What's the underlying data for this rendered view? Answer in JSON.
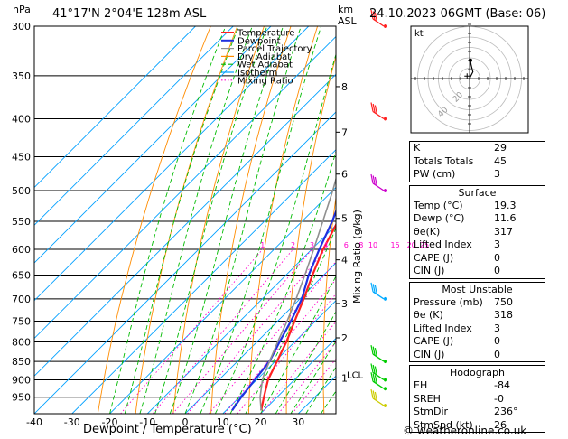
{
  "header": {
    "location": "41°17'N  2°04'E  128m  ASL",
    "datetime": "24.10.2023  06GMT  (Base: 06)",
    "pressure_unit": "hPa",
    "height_unit_top": "km",
    "height_unit_bottom": "ASL"
  },
  "legend": [
    "Temperature",
    "Dewpoint",
    "Parcel Trajectory",
    "Dry Adiabat",
    "Wet Adiabat",
    "Isotherm",
    "Mixing Ratio"
  ],
  "colors": {
    "temperature": "#ff2020",
    "dewpoint": "#2030e0",
    "parcel": "#909090",
    "dry_adiabat": "#ff8c00",
    "wet_adiabat": "#00bb00",
    "isotherm": "#00a0ff",
    "mixing_ratio": "#ff00cc",
    "wind": "#00cc00"
  },
  "chart_data": {
    "type": "line",
    "title": "",
    "xlabel": "Dewpoint / Temperature (°C)",
    "ylabel": "hPa",
    "y_scale": "log",
    "pressure_ticks": [
      300,
      350,
      400,
      450,
      500,
      550,
      600,
      650,
      700,
      750,
      800,
      850,
      900,
      950
    ],
    "temperature_ticks": [
      -40,
      -30,
      -20,
      -10,
      0,
      10,
      20,
      30
    ],
    "xlim": [
      -40,
      40
    ],
    "ylim": [
      1000,
      300
    ],
    "km_ticks": [
      {
        "label": "8",
        "p": 362
      },
      {
        "label": "7",
        "p": 417
      },
      {
        "label": "6",
        "p": 475
      },
      {
        "label": "5",
        "p": 545
      },
      {
        "label": "4",
        "p": 620
      },
      {
        "label": "3",
        "p": 710
      },
      {
        "label": "2",
        "p": 790
      },
      {
        "label": "1",
        "p": 895
      }
    ],
    "lcl": {
      "label": "LCL",
      "p": 885
    },
    "mixing_ratio_axis_label": "Mixing Ratio (g/kg)",
    "mixing_ratio_labels": [
      "1",
      "2",
      "3",
      "4",
      "6",
      "8",
      "10",
      "15",
      "20",
      "25"
    ],
    "mixing_ratio_values": [
      1,
      2,
      3,
      4,
      6,
      8,
      10,
      15,
      20,
      25
    ],
    "mixing_ratio_label_p": 600,
    "series": [
      {
        "name": "Temperature",
        "points": [
          [
            990,
            19.3
          ],
          [
            950,
            16.5
          ],
          [
            900,
            13.0
          ],
          [
            850,
            10.5
          ],
          [
            800,
            7.8
          ],
          [
            750,
            4.5
          ],
          [
            700,
            1.0
          ],
          [
            650,
            -3.0
          ],
          [
            600,
            -7.0
          ],
          [
            550,
            -10.5
          ],
          [
            500,
            -15.5
          ],
          [
            450,
            -21.5
          ],
          [
            400,
            -28.5
          ],
          [
            350,
            -37.0
          ],
          [
            300,
            -46.5
          ]
        ]
      },
      {
        "name": "Dewpoint",
        "points": [
          [
            990,
            11.6
          ],
          [
            950,
            10.5
          ],
          [
            900,
            9.5
          ],
          [
            850,
            8.5
          ],
          [
            800,
            6.0
          ],
          [
            750,
            3.5
          ],
          [
            700,
            0.5
          ],
          [
            650,
            -4.0
          ],
          [
            600,
            -8.0
          ],
          [
            550,
            -12.0
          ],
          [
            500,
            -17.0
          ],
          [
            450,
            -23.0
          ],
          [
            400,
            -32.0
          ],
          [
            350,
            -43.0
          ],
          [
            300,
            -57.0
          ]
        ]
      },
      {
        "name": "Parcel Trajectory",
        "points": [
          [
            990,
            19.3
          ],
          [
            950,
            15.5
          ],
          [
            900,
            11.5
          ],
          [
            885,
            10.5
          ],
          [
            850,
            8.5
          ],
          [
            800,
            5.5
          ],
          [
            750,
            2.5
          ],
          [
            700,
            -1.0
          ],
          [
            650,
            -5.0
          ],
          [
            600,
            -9.5
          ],
          [
            550,
            -14.5
          ],
          [
            500,
            -20.0
          ],
          [
            450,
            -26.5
          ],
          [
            400,
            -34.0
          ]
        ]
      }
    ],
    "winds": [
      {
        "p": 300,
        "color": "#ff2020"
      },
      {
        "p": 400,
        "color": "#ff2020"
      },
      {
        "p": 500,
        "color": "#cc00cc"
      },
      {
        "p": 700,
        "color": "#00aaff"
      },
      {
        "p": 850,
        "color": "#00cc00"
      },
      {
        "p": 900,
        "color": "#00cc00"
      },
      {
        "p": 925,
        "color": "#00cc00"
      },
      {
        "p": 975,
        "color": "#cccc00"
      }
    ],
    "hodograph": {
      "label": "kt",
      "ring_labels": [
        "20",
        "40"
      ],
      "ring_kt": [
        10,
        20,
        30,
        40,
        50
      ],
      "trace_kt": [
        [
          0,
          0
        ],
        [
          1,
          2
        ],
        [
          2,
          4
        ],
        [
          1,
          8
        ],
        [
          0.5,
          11
        ],
        [
          -0.5,
          11.5
        ]
      ],
      "storm_motion_kt": [
        -1.5,
        1.5
      ]
    }
  },
  "indices": [
    {
      "label": "K",
      "value": "29"
    },
    {
      "label": "Totals Totals",
      "value": "45"
    },
    {
      "label": "PW (cm)",
      "value": "3"
    }
  ],
  "surface": {
    "title": "Surface",
    "rows": [
      {
        "label": "Temp (°C)",
        "value": "19.3"
      },
      {
        "label": "Dewp (°C)",
        "value": "11.6"
      },
      {
        "label": "θe(K)",
        "value": "317"
      },
      {
        "label": "Lifted Index",
        "value": "3"
      },
      {
        "label": "CAPE (J)",
        "value": "0"
      },
      {
        "label": "CIN (J)",
        "value": "0"
      }
    ]
  },
  "most_unstable": {
    "title": "Most Unstable",
    "rows": [
      {
        "label": "Pressure (mb)",
        "value": "750"
      },
      {
        "label": "θe (K)",
        "value": "318"
      },
      {
        "label": "Lifted Index",
        "value": "3"
      },
      {
        "label": "CAPE (J)",
        "value": "0"
      },
      {
        "label": "CIN (J)",
        "value": "0"
      }
    ]
  },
  "hodograph_table": {
    "title": "Hodograph",
    "rows": [
      {
        "label": "EH",
        "value": "-84"
      },
      {
        "label": "SREH",
        "value": "-0"
      },
      {
        "label": "StmDir",
        "value": "236°"
      },
      {
        "label": "StmSpd (kt)",
        "value": "26"
      }
    ]
  },
  "credit": "© weatheronline.co.uk"
}
